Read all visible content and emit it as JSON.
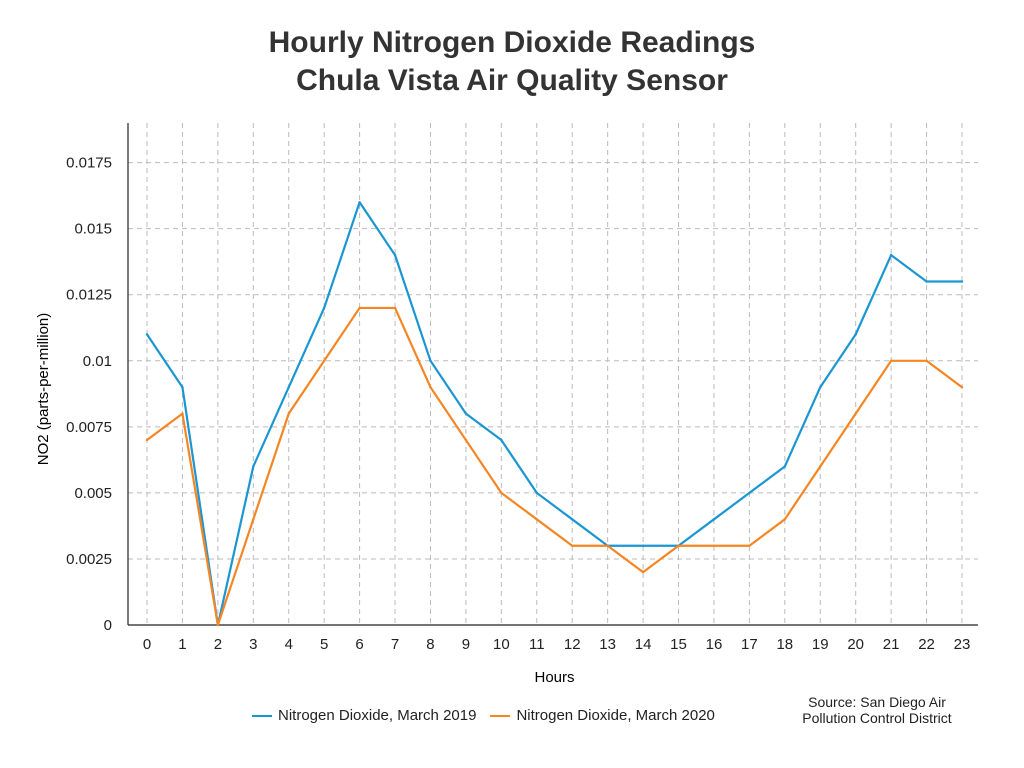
{
  "chart_data": {
    "type": "line",
    "title": "Hourly Nitrogen Dioxide Readings",
    "subtitle": "Chula Vista Air Quality Sensor",
    "xlabel": "Hours",
    "ylabel": "NO2 (parts-per-million)",
    "x": [
      0,
      1,
      2,
      3,
      4,
      5,
      6,
      7,
      8,
      9,
      10,
      11,
      12,
      13,
      14,
      15,
      16,
      17,
      18,
      19,
      20,
      21,
      22,
      23
    ],
    "yticks": [
      "0",
      "0.0025",
      "0.005",
      "0.0075",
      "0.01",
      "0.0125",
      "0.015",
      "0.0175"
    ],
    "ylim": [
      0,
      0.019
    ],
    "grid": true,
    "legend_position": "bottom",
    "series": [
      {
        "name": "Nitrogen Dioxide, March 2019",
        "color": "#1a96d2",
        "values": [
          0.011,
          0.009,
          0,
          0.006,
          0.009,
          0.012,
          0.016,
          0.014,
          0.01,
          0.008,
          0.007,
          0.005,
          0.004,
          0.003,
          0.003,
          0.003,
          0.004,
          0.005,
          0.006,
          0.009,
          0.011,
          0.014,
          0.013,
          0.013
        ]
      },
      {
        "name": "Nitrogen Dioxide, March 2020",
        "color": "#f68524",
        "values": [
          0.007,
          0.008,
          0,
          0.004,
          0.008,
          0.01,
          0.012,
          0.012,
          0.009,
          0.007,
          0.005,
          0.004,
          0.003,
          0.003,
          0.002,
          0.003,
          0.003,
          0.003,
          0.004,
          0.006,
          0.008,
          0.01,
          0.01,
          0.009
        ]
      }
    ],
    "source_line1": "Source: San Diego Air",
    "source_line2": "Pollution Control District"
  }
}
